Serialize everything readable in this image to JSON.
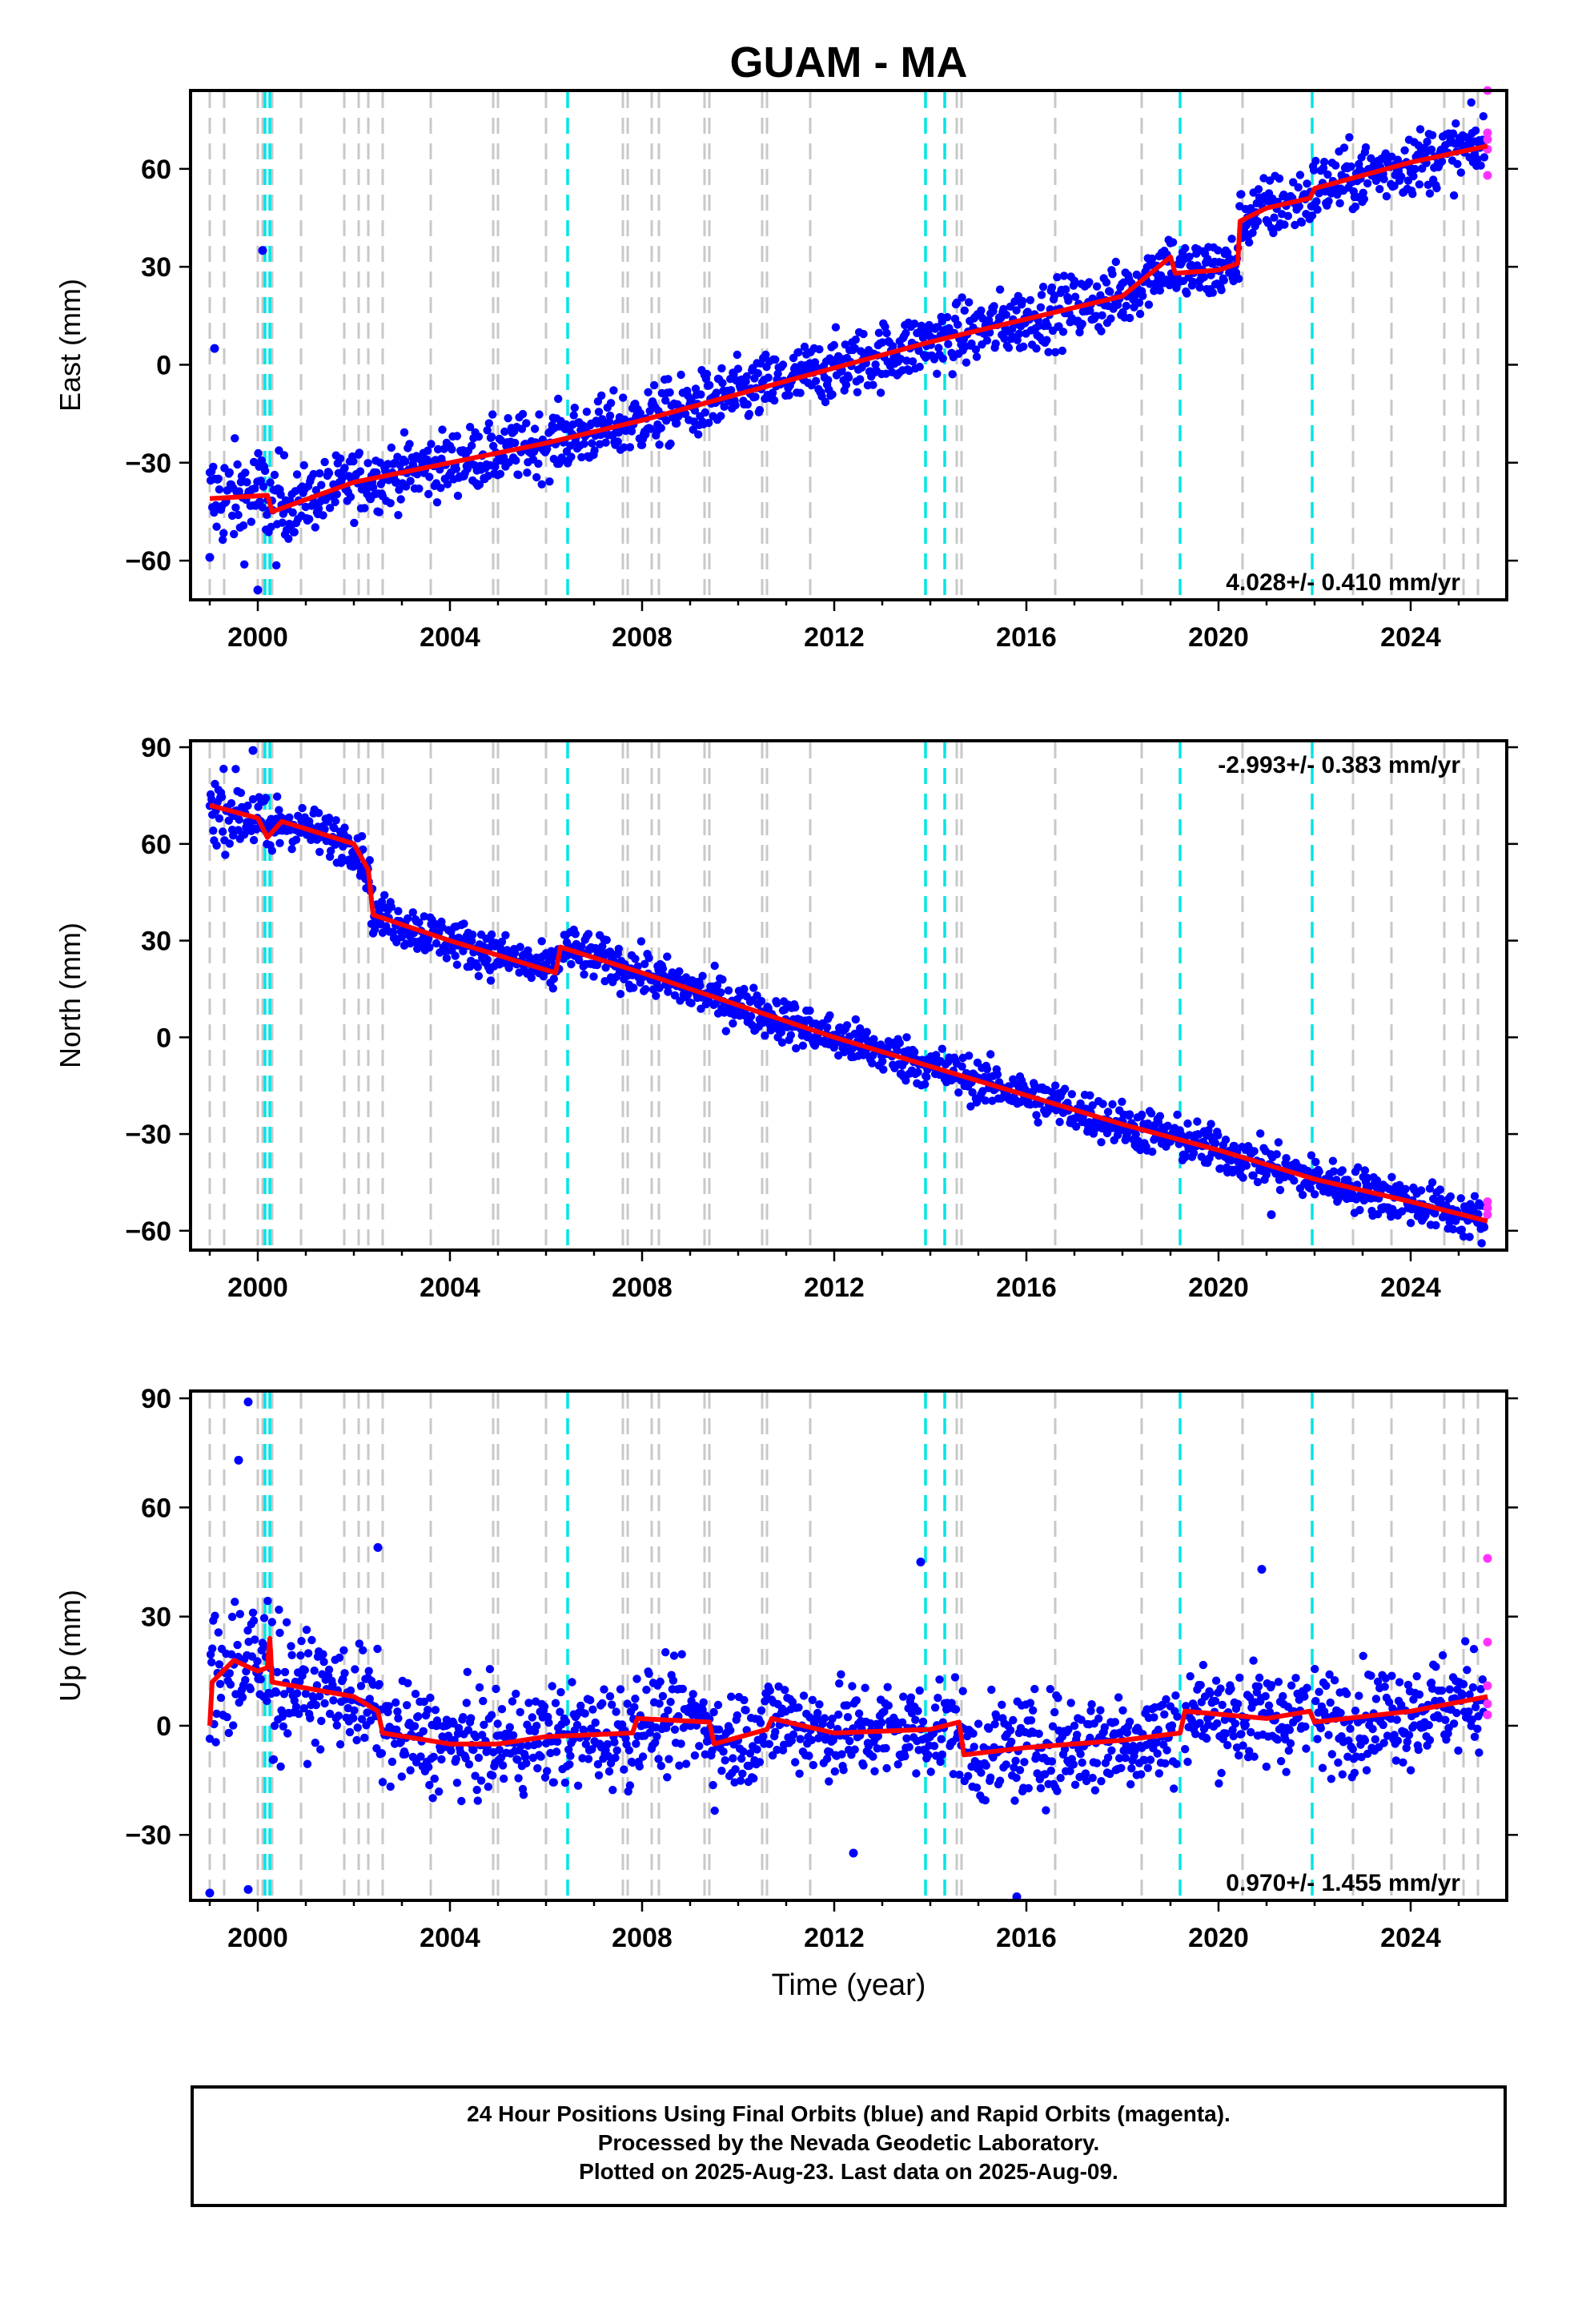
{
  "title": "GUAM - MA",
  "caption": [
    "24 Hour Positions Using Final Orbits (blue) and Rapid Orbits (magenta).",
    "Processed by the Nevada Geodetic Laboratory.",
    "Plotted on 2025-Aug-23. Last data on 2025-Aug-09."
  ],
  "colors": {
    "final": "#0000ff",
    "rapid": "#ff33ff",
    "model": "#ff0000",
    "equipment_change": "#c8c8c8",
    "earthquake": "#00e5e5"
  },
  "chart_data": [
    {
      "type": "scatter",
      "ylabel": "East (mm)",
      "xlabel": "",
      "xlim": [
        1998.6,
        2026.0
      ],
      "ylim": [
        -72,
        84
      ],
      "xticks": [
        2000,
        2004,
        2008,
        2012,
        2016,
        2020,
        2024
      ],
      "yticks": [
        -60,
        -30,
        0,
        30,
        60
      ],
      "rate_label": "4.028+/- 0.410 mm/yr",
      "rate_position": "bottom-right",
      "trend": [
        [
          1999.0,
          -41
        ],
        [
          2000.2,
          -40
        ],
        [
          2000.3,
          -45
        ],
        [
          2002.0,
          -36
        ],
        [
          2004.0,
          -30
        ],
        [
          2006.0,
          -24
        ],
        [
          2008.0,
          -17
        ],
        [
          2010.0,
          -9
        ],
        [
          2012.0,
          -1
        ],
        [
          2014.0,
          7
        ],
        [
          2016.0,
          14
        ],
        [
          2018.0,
          21
        ],
        [
          2019.0,
          33
        ],
        [
          2019.1,
          28
        ],
        [
          2020.0,
          29
        ],
        [
          2020.4,
          31
        ],
        [
          2020.45,
          44
        ],
        [
          2021.0,
          48
        ],
        [
          2021.9,
          51
        ],
        [
          2022.0,
          54
        ],
        [
          2024.0,
          62
        ],
        [
          2025.6,
          67
        ]
      ],
      "outliers": [
        [
          1999.1,
          5
        ],
        [
          2000.1,
          35
        ],
        [
          2000.0,
          -69
        ],
        [
          1999.0,
          -59
        ]
      ],
      "rapid_points": [
        [
          2025.6,
          69
        ],
        [
          2025.6,
          71
        ],
        [
          2025.6,
          58
        ],
        [
          2025.6,
          84
        ],
        [
          2025.6,
          66
        ]
      ],
      "scatter_spread": 5
    },
    {
      "type": "scatter",
      "ylabel": "North (mm)",
      "xlabel": "",
      "xlim": [
        1998.6,
        2026.0
      ],
      "ylim": [
        -66,
        92
      ],
      "xticks": [
        2000,
        2004,
        2008,
        2012,
        2016,
        2020,
        2024
      ],
      "yticks": [
        -60,
        -30,
        0,
        30,
        60,
        90
      ],
      "rate_label": "-2.993+/- 0.383 mm/yr",
      "rate_position": "top-right",
      "trend": [
        [
          1999.0,
          72
        ],
        [
          2000.0,
          68
        ],
        [
          2000.2,
          62
        ],
        [
          2000.5,
          67
        ],
        [
          2002.0,
          60
        ],
        [
          2002.3,
          52
        ],
        [
          2002.4,
          38
        ],
        [
          2004.0,
          30
        ],
        [
          2006.2,
          20
        ],
        [
          2006.3,
          28
        ],
        [
          2008.0,
          20
        ],
        [
          2010.0,
          10
        ],
        [
          2012.0,
          0
        ],
        [
          2014.0,
          -9
        ],
        [
          2016.0,
          -18
        ],
        [
          2018.0,
          -27
        ],
        [
          2020.0,
          -35
        ],
        [
          2022.0,
          -44
        ],
        [
          2024.0,
          -51
        ],
        [
          2025.6,
          -57
        ]
      ],
      "outliers": [
        [
          1999.9,
          89
        ],
        [
          2021.1,
          -55
        ]
      ],
      "rapid_points": [
        [
          2025.6,
          -53
        ],
        [
          2025.6,
          -55
        ],
        [
          2025.6,
          -51
        ]
      ],
      "scatter_spread": 3.5
    },
    {
      "type": "scatter",
      "ylabel": "Up (mm)",
      "xlabel": "Time (year)",
      "xlim": [
        1998.6,
        2026.0
      ],
      "ylim": [
        -48,
        92
      ],
      "xticks": [
        2000,
        2004,
        2008,
        2012,
        2016,
        2020,
        2024
      ],
      "yticks": [
        -30,
        0,
        30,
        60,
        90
      ],
      "rate_label": "0.970+/- 1.455 mm/yr",
      "rate_position": "bottom-right",
      "trend": [
        [
          1999.0,
          0
        ],
        [
          1999.05,
          12
        ],
        [
          1999.5,
          18
        ],
        [
          2000.0,
          15
        ],
        [
          2000.2,
          16
        ],
        [
          2000.25,
          24
        ],
        [
          2000.3,
          12
        ],
        [
          2002.0,
          8
        ],
        [
          2002.5,
          4
        ],
        [
          2002.6,
          -2
        ],
        [
          2004.0,
          -5
        ],
        [
          2005.0,
          -5
        ],
        [
          2006.0,
          -3
        ],
        [
          2007.8,
          -2
        ],
        [
          2007.9,
          2
        ],
        [
          2009.4,
          1
        ],
        [
          2009.5,
          -5
        ],
        [
          2010.6,
          -1
        ],
        [
          2010.7,
          2
        ],
        [
          2012.0,
          -2
        ],
        [
          2014.0,
          -1
        ],
        [
          2014.6,
          1
        ],
        [
          2014.7,
          -8
        ],
        [
          2016.0,
          -6
        ],
        [
          2018.0,
          -4
        ],
        [
          2019.2,
          -2
        ],
        [
          2019.3,
          4
        ],
        [
          2021.0,
          2
        ],
        [
          2021.9,
          4
        ],
        [
          2022.0,
          1
        ],
        [
          2024.0,
          4
        ],
        [
          2025.6,
          8
        ]
      ],
      "outliers": [
        [
          1999.8,
          89
        ],
        [
          1999.6,
          73
        ],
        [
          2002.5,
          49
        ],
        [
          2020.9,
          43
        ],
        [
          2013.8,
          45
        ],
        [
          1999.0,
          -46
        ],
        [
          1999.8,
          -45
        ],
        [
          2015.8,
          -47
        ],
        [
          2012.4,
          -35
        ]
      ],
      "rapid_points": [
        [
          2025.6,
          46
        ],
        [
          2025.6,
          23
        ],
        [
          2025.6,
          11
        ],
        [
          2025.6,
          6
        ],
        [
          2025.6,
          3
        ]
      ],
      "scatter_spread": 7
    }
  ],
  "vlines": {
    "equipment_change": [
      1999.0,
      1999.3,
      2000.0,
      2000.1,
      2000.3,
      2000.9,
      2001.8,
      2002.1,
      2002.3,
      2002.6,
      2003.6,
      2004.9,
      2005.0,
      2006.0,
      2007.6,
      2007.7,
      2008.2,
      2008.35,
      2009.3,
      2009.4,
      2010.5,
      2010.6,
      2011.5,
      2014.55,
      2014.65,
      2016.6,
      2018.4,
      2020.5,
      2022.8,
      2023.6,
      2024.7,
      2025.1,
      2025.4
    ],
    "earthquake": [
      2000.15,
      2000.25,
      2006.45,
      2013.9,
      2014.3,
      2019.2,
      2021.95
    ]
  }
}
